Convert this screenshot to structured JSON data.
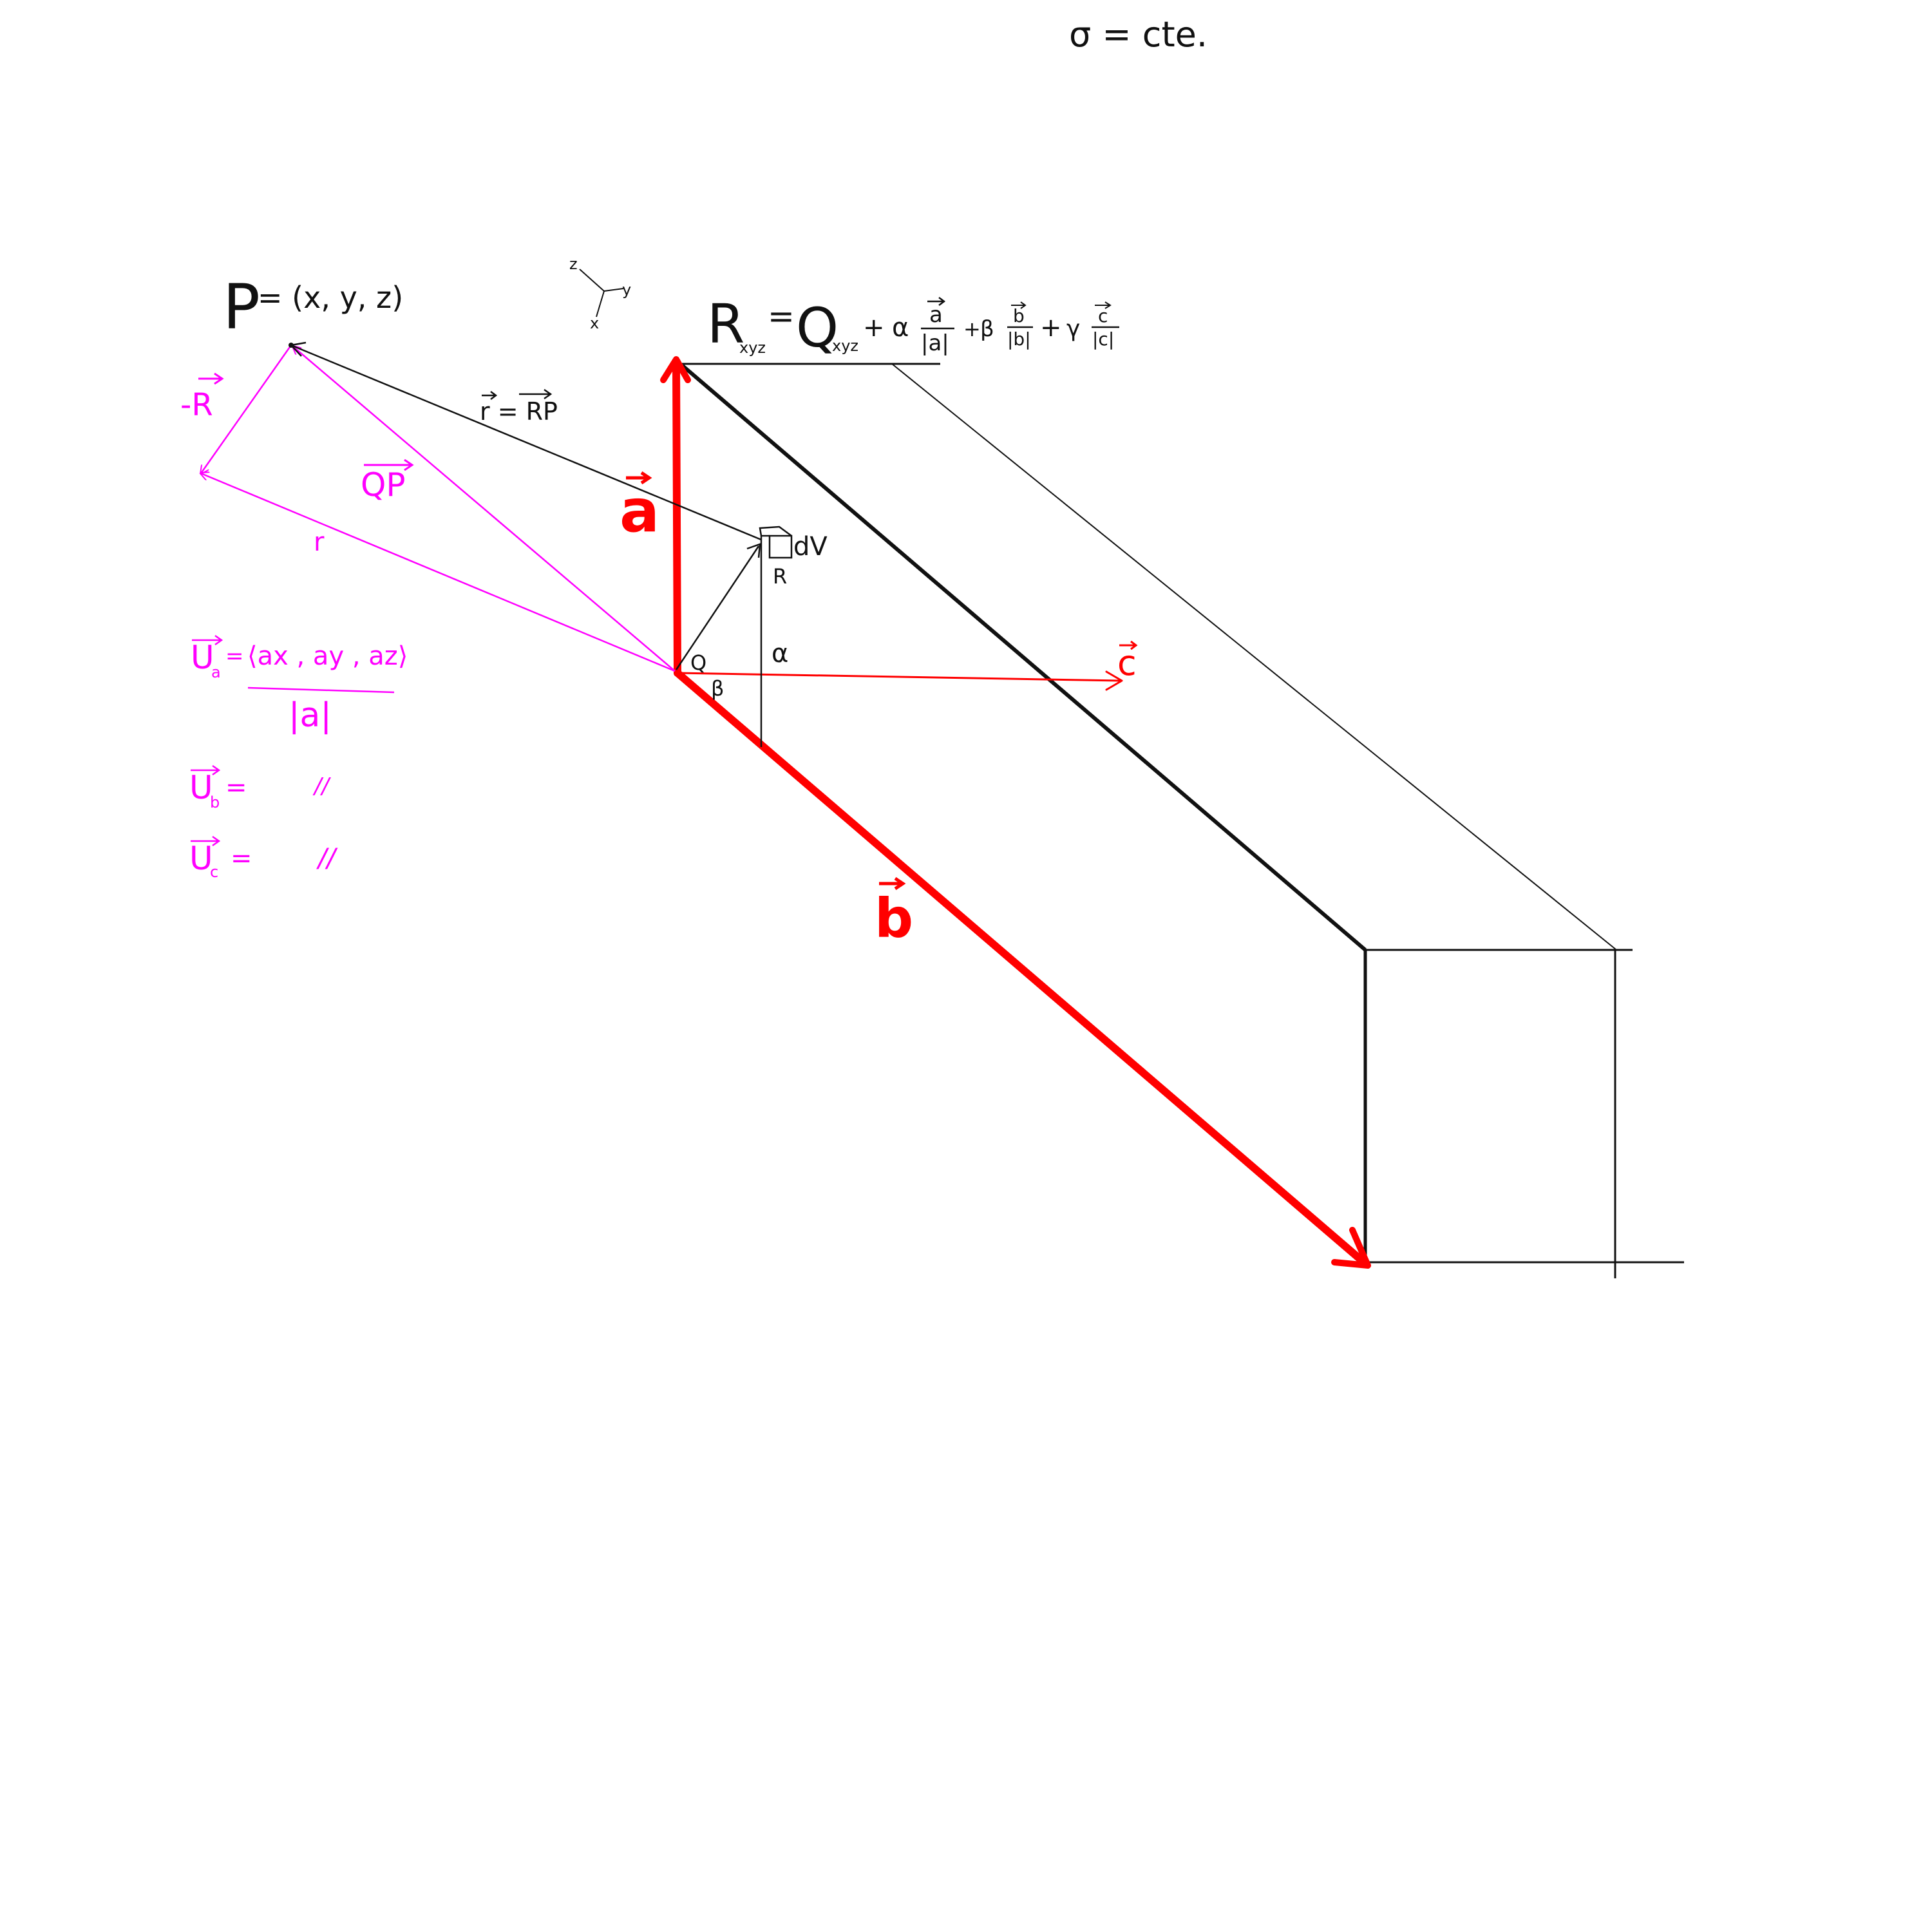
{
  "header_note": "σ = cte.",
  "point_p": {
    "letter": "P",
    "coords": "= (x, y, z)"
  },
  "axes_gizmo": {
    "z": "z",
    "y": "y",
    "x": "x"
  },
  "formula_r": {
    "lhs": "R",
    "lhs_sub": "xyz",
    "eq": "=",
    "q": "Q",
    "q_sub": "xyz",
    "plus1": "+",
    "alpha": "α",
    "a_num": "a",
    "a_den": "|a|",
    "plus2": "+",
    "beta": "β",
    "b_num": "b",
    "b_den": "|b|",
    "plus3": "+",
    "gamma": "γ",
    "c_num": "c",
    "c_den": "|c|"
  },
  "vector_labels": {
    "r_eq_rp": "r = RP",
    "qp": "QP",
    "neg_r": "-R",
    "r_small": "r",
    "a": "a",
    "b": "b",
    "c": "c"
  },
  "element": {
    "dv": "dV",
    "r_point": "R",
    "q_point": "Q",
    "alpha": "α",
    "beta": "β"
  },
  "unit_vectors": {
    "ua_label": "U",
    "ua_sub": "a",
    "ua_eq": "=",
    "ua_num": "⟨ax , ay , az⟩",
    "ua_den": "|a|",
    "ub_label": "U",
    "ub_sub": "b",
    "ub_eq": "=",
    "ub_ditto": "//",
    "uc_label": "U",
    "uc_sub": "c",
    "uc_eq": "=",
    "uc_ditto": "//"
  },
  "colors": {
    "ink": "#111111",
    "magenta": "#ff00ff",
    "red": "#ff0000"
  }
}
